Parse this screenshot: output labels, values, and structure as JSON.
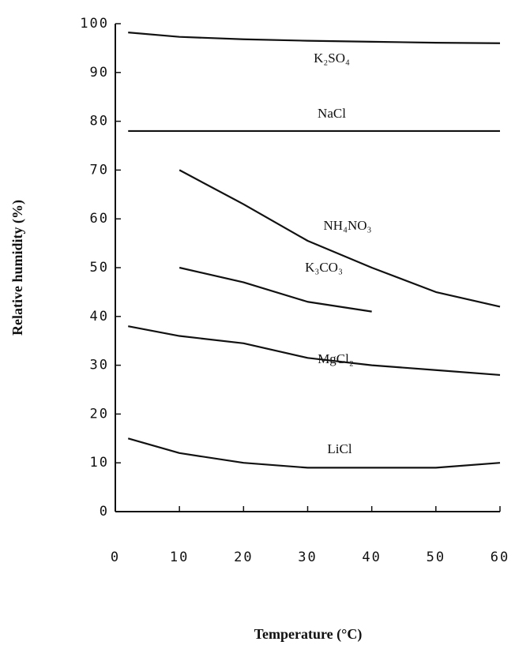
{
  "chart_data": {
    "type": "line",
    "x_label": "Temperature (°C)",
    "y_label": "Relative humidity (%)",
    "x": [
      2,
      10,
      20,
      30,
      40,
      50,
      60
    ],
    "series": [
      {
        "name": "K₂SO₄",
        "color": "#111111",
        "values": [
          98.2,
          97.3,
          96.8,
          96.5,
          96.3,
          96.1,
          96.0
        ]
      },
      {
        "name": "NaCl",
        "color": "#111111",
        "values": [
          78,
          78,
          78,
          78,
          78,
          78,
          78
        ]
      },
      {
        "name": "NH₄NO₃",
        "color": "#111111",
        "values": [
          null,
          70,
          63,
          55.5,
          50,
          45,
          42
        ]
      },
      {
        "name": "K₃CO₃",
        "color": "#111111",
        "values": [
          null,
          50,
          47,
          43,
          41,
          null,
          null
        ]
      },
      {
        "name": "MgCl₂",
        "color": "#111111",
        "values": [
          38,
          36,
          34.5,
          31.5,
          30,
          29,
          28
        ]
      },
      {
        "name": "LiCl",
        "color": "#111111",
        "values": [
          15,
          12,
          10,
          9,
          9,
          9,
          10
        ]
      }
    ],
    "xlim": [
      0,
      60
    ],
    "xticks": [
      0,
      10,
      20,
      30,
      40,
      50,
      60
    ],
    "ylim": [
      0,
      100
    ],
    "yticks": [
      0,
      10,
      20,
      30,
      40,
      50,
      60,
      70,
      80,
      90,
      100
    ]
  }
}
